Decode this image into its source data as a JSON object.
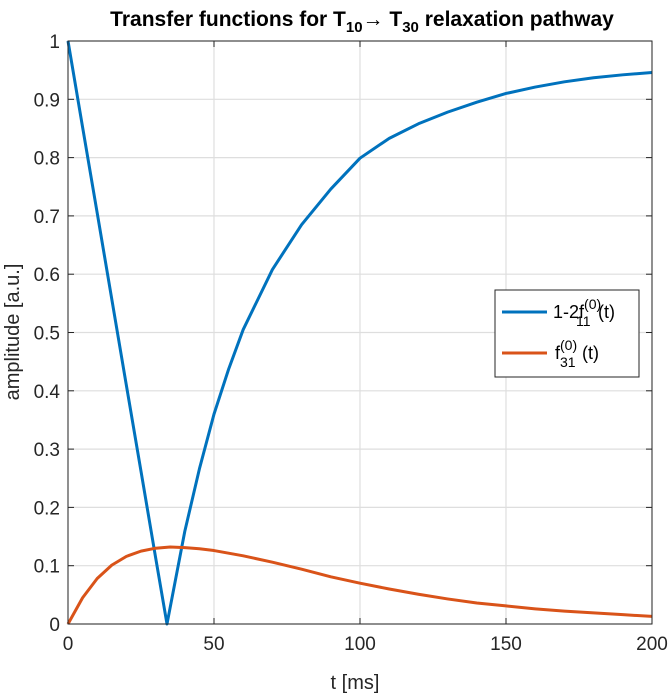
{
  "chart_data": {
    "type": "line",
    "title": {
      "prefix": "Transfer functions for T",
      "sub1": "10",
      "arrow": "→",
      "mid": " T",
      "sub2": "30",
      "suffix": " relaxation pathway"
    },
    "xlabel": "t [ms]",
    "ylabel": "amplitude [a.u.]",
    "xlim": [
      0,
      200
    ],
    "ylim": [
      0,
      1
    ],
    "xticks": [
      0,
      50,
      100,
      150,
      200
    ],
    "yticks": [
      0,
      0.1,
      0.2,
      0.3,
      0.4,
      0.5,
      0.6,
      0.7,
      0.8,
      0.9,
      1
    ],
    "ytick_labels": [
      "0",
      "0.1",
      "0.2",
      "0.3",
      "0.4",
      "0.5",
      "0.6",
      "0.7",
      "0.8",
      "0.9",
      "1"
    ],
    "grid": true,
    "legend_position": "right",
    "series": [
      {
        "name": {
          "base": "1-2f",
          "sup": "(0)",
          "sub": "11",
          "tail": "(t)"
        },
        "color": "#0072BD",
        "x": [
          0,
          5,
          10,
          15,
          20,
          25,
          30,
          33.9,
          40,
          45,
          50,
          55,
          60,
          70,
          80,
          90,
          100,
          110,
          120,
          130,
          140,
          150,
          160,
          170,
          180,
          190,
          200
        ],
        "y": [
          1,
          0.852,
          0.705,
          0.557,
          0.409,
          0.262,
          0.114,
          0,
          0.159,
          0.266,
          0.36,
          0.437,
          0.505,
          0.608,
          0.685,
          0.746,
          0.799,
          0.833,
          0.858,
          0.878,
          0.895,
          0.91,
          0.921,
          0.93,
          0.937,
          0.942,
          0.946
        ]
      },
      {
        "name": {
          "base": "f",
          "sup": "(0)",
          "sub": "31",
          "tail": "(t)"
        },
        "color": "#D95319",
        "x": [
          0,
          5,
          10,
          15,
          20,
          25,
          30,
          35,
          40,
          45,
          50,
          60,
          70,
          80,
          90,
          100,
          110,
          120,
          130,
          140,
          150,
          160,
          170,
          180,
          190,
          200
        ],
        "y": [
          0,
          0.045,
          0.078,
          0.101,
          0.116,
          0.125,
          0.13,
          0.132,
          0.131,
          0.129,
          0.126,
          0.117,
          0.106,
          0.094,
          0.081,
          0.07,
          0.06,
          0.051,
          0.043,
          0.036,
          0.031,
          0.026,
          0.022,
          0.019,
          0.016,
          0.013
        ]
      }
    ]
  }
}
